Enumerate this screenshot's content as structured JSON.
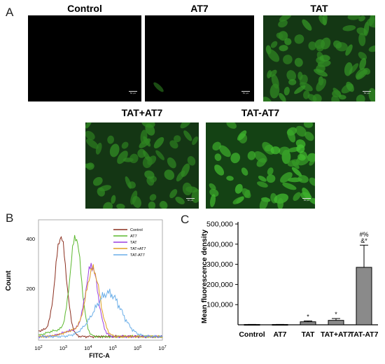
{
  "panel_a": {
    "letter": "A",
    "images": [
      {
        "id": "control",
        "label": "Control",
        "cell_count": 0,
        "intensity": 0.0
      },
      {
        "id": "at7",
        "label": "AT7",
        "cell_count": 1,
        "intensity": 0.15
      },
      {
        "id": "tat",
        "label": "TAT",
        "cell_count": 70,
        "intensity": 0.5
      },
      {
        "id": "tat_plus_at7",
        "label": "TAT+AT7",
        "cell_count": 55,
        "intensity": 0.45
      },
      {
        "id": "tat_dash_at7",
        "label": "TAT-AT7",
        "cell_count": 60,
        "intensity": 0.85
      }
    ],
    "scale_bar_label": "50 μm"
  },
  "panel_b": {
    "letter": "B",
    "legend": [
      {
        "label": "Control",
        "color": "#8b2e1e"
      },
      {
        "label": "AT7",
        "color": "#5cb82e"
      },
      {
        "label": "TAT",
        "color": "#9a3ee0"
      },
      {
        "label": "TAT+AT7",
        "color": "#e0a020"
      },
      {
        "label": "TAT-AT7",
        "color": "#6aaee8"
      }
    ],
    "y_ticks": [
      "400",
      "200"
    ],
    "x_tick_exponents": [
      "2",
      "3",
      "4",
      "5",
      "6",
      "7"
    ],
    "y_label": "Count",
    "x_label": "FITC-A"
  },
  "chart_data": {
    "type": "bar",
    "title": "",
    "xlabel": "",
    "ylabel": "Mean fluorescence density",
    "categories": [
      "Control",
      "AT7",
      "TAT",
      "TAT+AT7",
      "TAT-AT7"
    ],
    "values": [
      1500,
      1500,
      15000,
      22000,
      285000
    ],
    "errors": [
      500,
      500,
      4000,
      9000,
      110000
    ],
    "ylim": [
      0,
      500000
    ],
    "y_ticks": [
      "100,000",
      "200,000",
      "300,000",
      "400,000",
      "500,000"
    ],
    "y_tick_values": [
      100000,
      200000,
      300000,
      400000,
      500000
    ],
    "annotations": [
      {
        "category": "TAT",
        "text": "*"
      },
      {
        "category": "TAT+AT7",
        "text": "*"
      },
      {
        "category": "TAT-AT7",
        "text": "#%"
      },
      {
        "category": "TAT-AT7",
        "text": "&*"
      }
    ],
    "bar_color": "#8a8a8a",
    "panel_letter": "C"
  }
}
